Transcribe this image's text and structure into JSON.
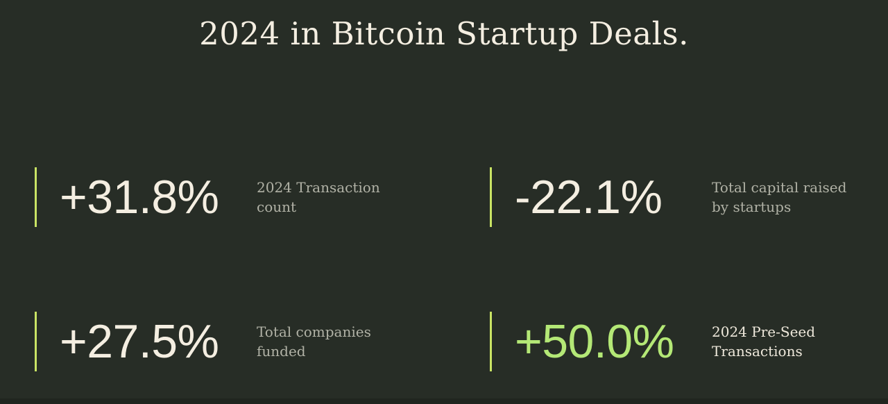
{
  "page": {
    "background_color": "#272d26",
    "bottom_strip_color": "#20251f"
  },
  "colors": {
    "cream_text": "#f4eee1",
    "muted_label": "#b1b2a6",
    "lime_value": "#b4e876",
    "lime_bar": "#c9e464",
    "highlight_label": "#eee8db"
  },
  "title": "2024 in Bitcoin Startup Deals.",
  "stats": [
    {
      "value": "+31.8%",
      "label": "2024 Transaction\ncount",
      "highlight": false
    },
    {
      "value": "-22.1%",
      "label": "Total capital raised\nby startups",
      "highlight": false
    },
    {
      "value": "+27.5%",
      "label": "Total companies\nfunded",
      "highlight": false
    },
    {
      "value": "+50.0%",
      "label": "2024 Pre-Seed\nTransactions",
      "highlight": true
    }
  ]
}
